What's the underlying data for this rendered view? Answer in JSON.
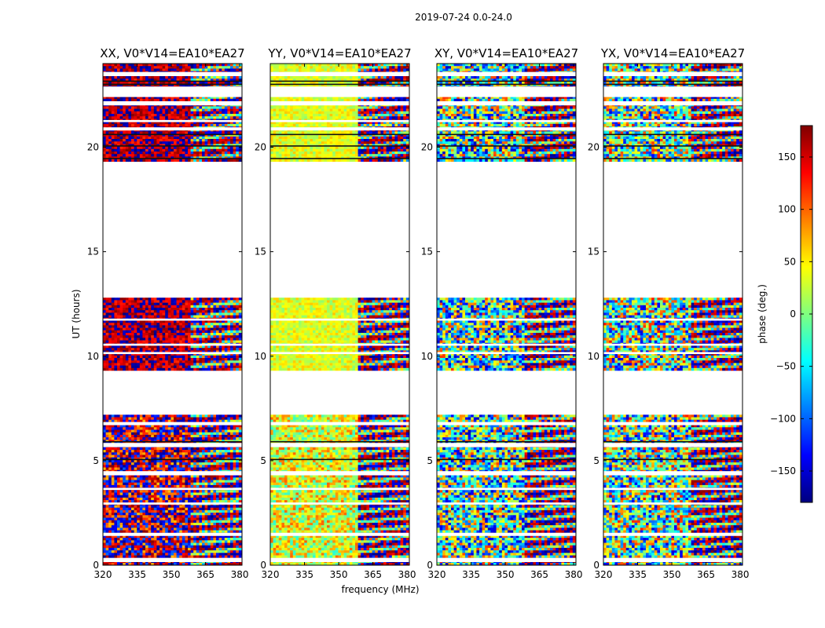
{
  "chart_data": {
    "type": "heatmap",
    "suptitle": "2019-07-24 0.0-24.0",
    "xlabel": "frequency (MHz)",
    "ylabel": "UT (hours)",
    "xlim": [
      320,
      381
    ],
    "ylim": [
      0,
      24
    ],
    "xticks": [
      320,
      335,
      350,
      365,
      380
    ],
    "yticks": [
      0,
      5,
      10,
      15,
      20
    ],
    "colorbar": {
      "label": "phase (deg.)",
      "range": [
        -180,
        180
      ],
      "ticks": [
        150,
        100,
        50,
        0,
        -50,
        -100,
        -150
      ],
      "ticklabels": [
        "150",
        "100",
        "50",
        "0",
        "−50",
        "−100",
        "−150"
      ],
      "colormap": "jet",
      "stops": [
        "#00007f",
        "#0000ff",
        "#007fff",
        "#00ffff",
        "#7fff7f",
        "#ffff00",
        "#ff7f00",
        "#ff0000",
        "#7f0000"
      ]
    },
    "data_time_blocks_hours": [
      [
        0.0,
        7.2
      ],
      [
        9.4,
        12.8
      ],
      [
        19.4,
        24.0
      ]
    ],
    "panels": [
      {
        "title": "XX, V0*V14=EA10*EA27",
        "phase_center_deg": 165,
        "phase_spread_deg": 45
      },
      {
        "title": "YY, V0*V14=EA10*EA27",
        "phase_center_deg": 35,
        "phase_spread_deg": 30
      },
      {
        "title": "XY, V0*V14=EA10*EA27",
        "phase_center_deg": -20,
        "phase_spread_deg": 140
      },
      {
        "title": "YX, V0*V14=EA10*EA27",
        "phase_center_deg": -10,
        "phase_spread_deg": 140
      }
    ]
  }
}
